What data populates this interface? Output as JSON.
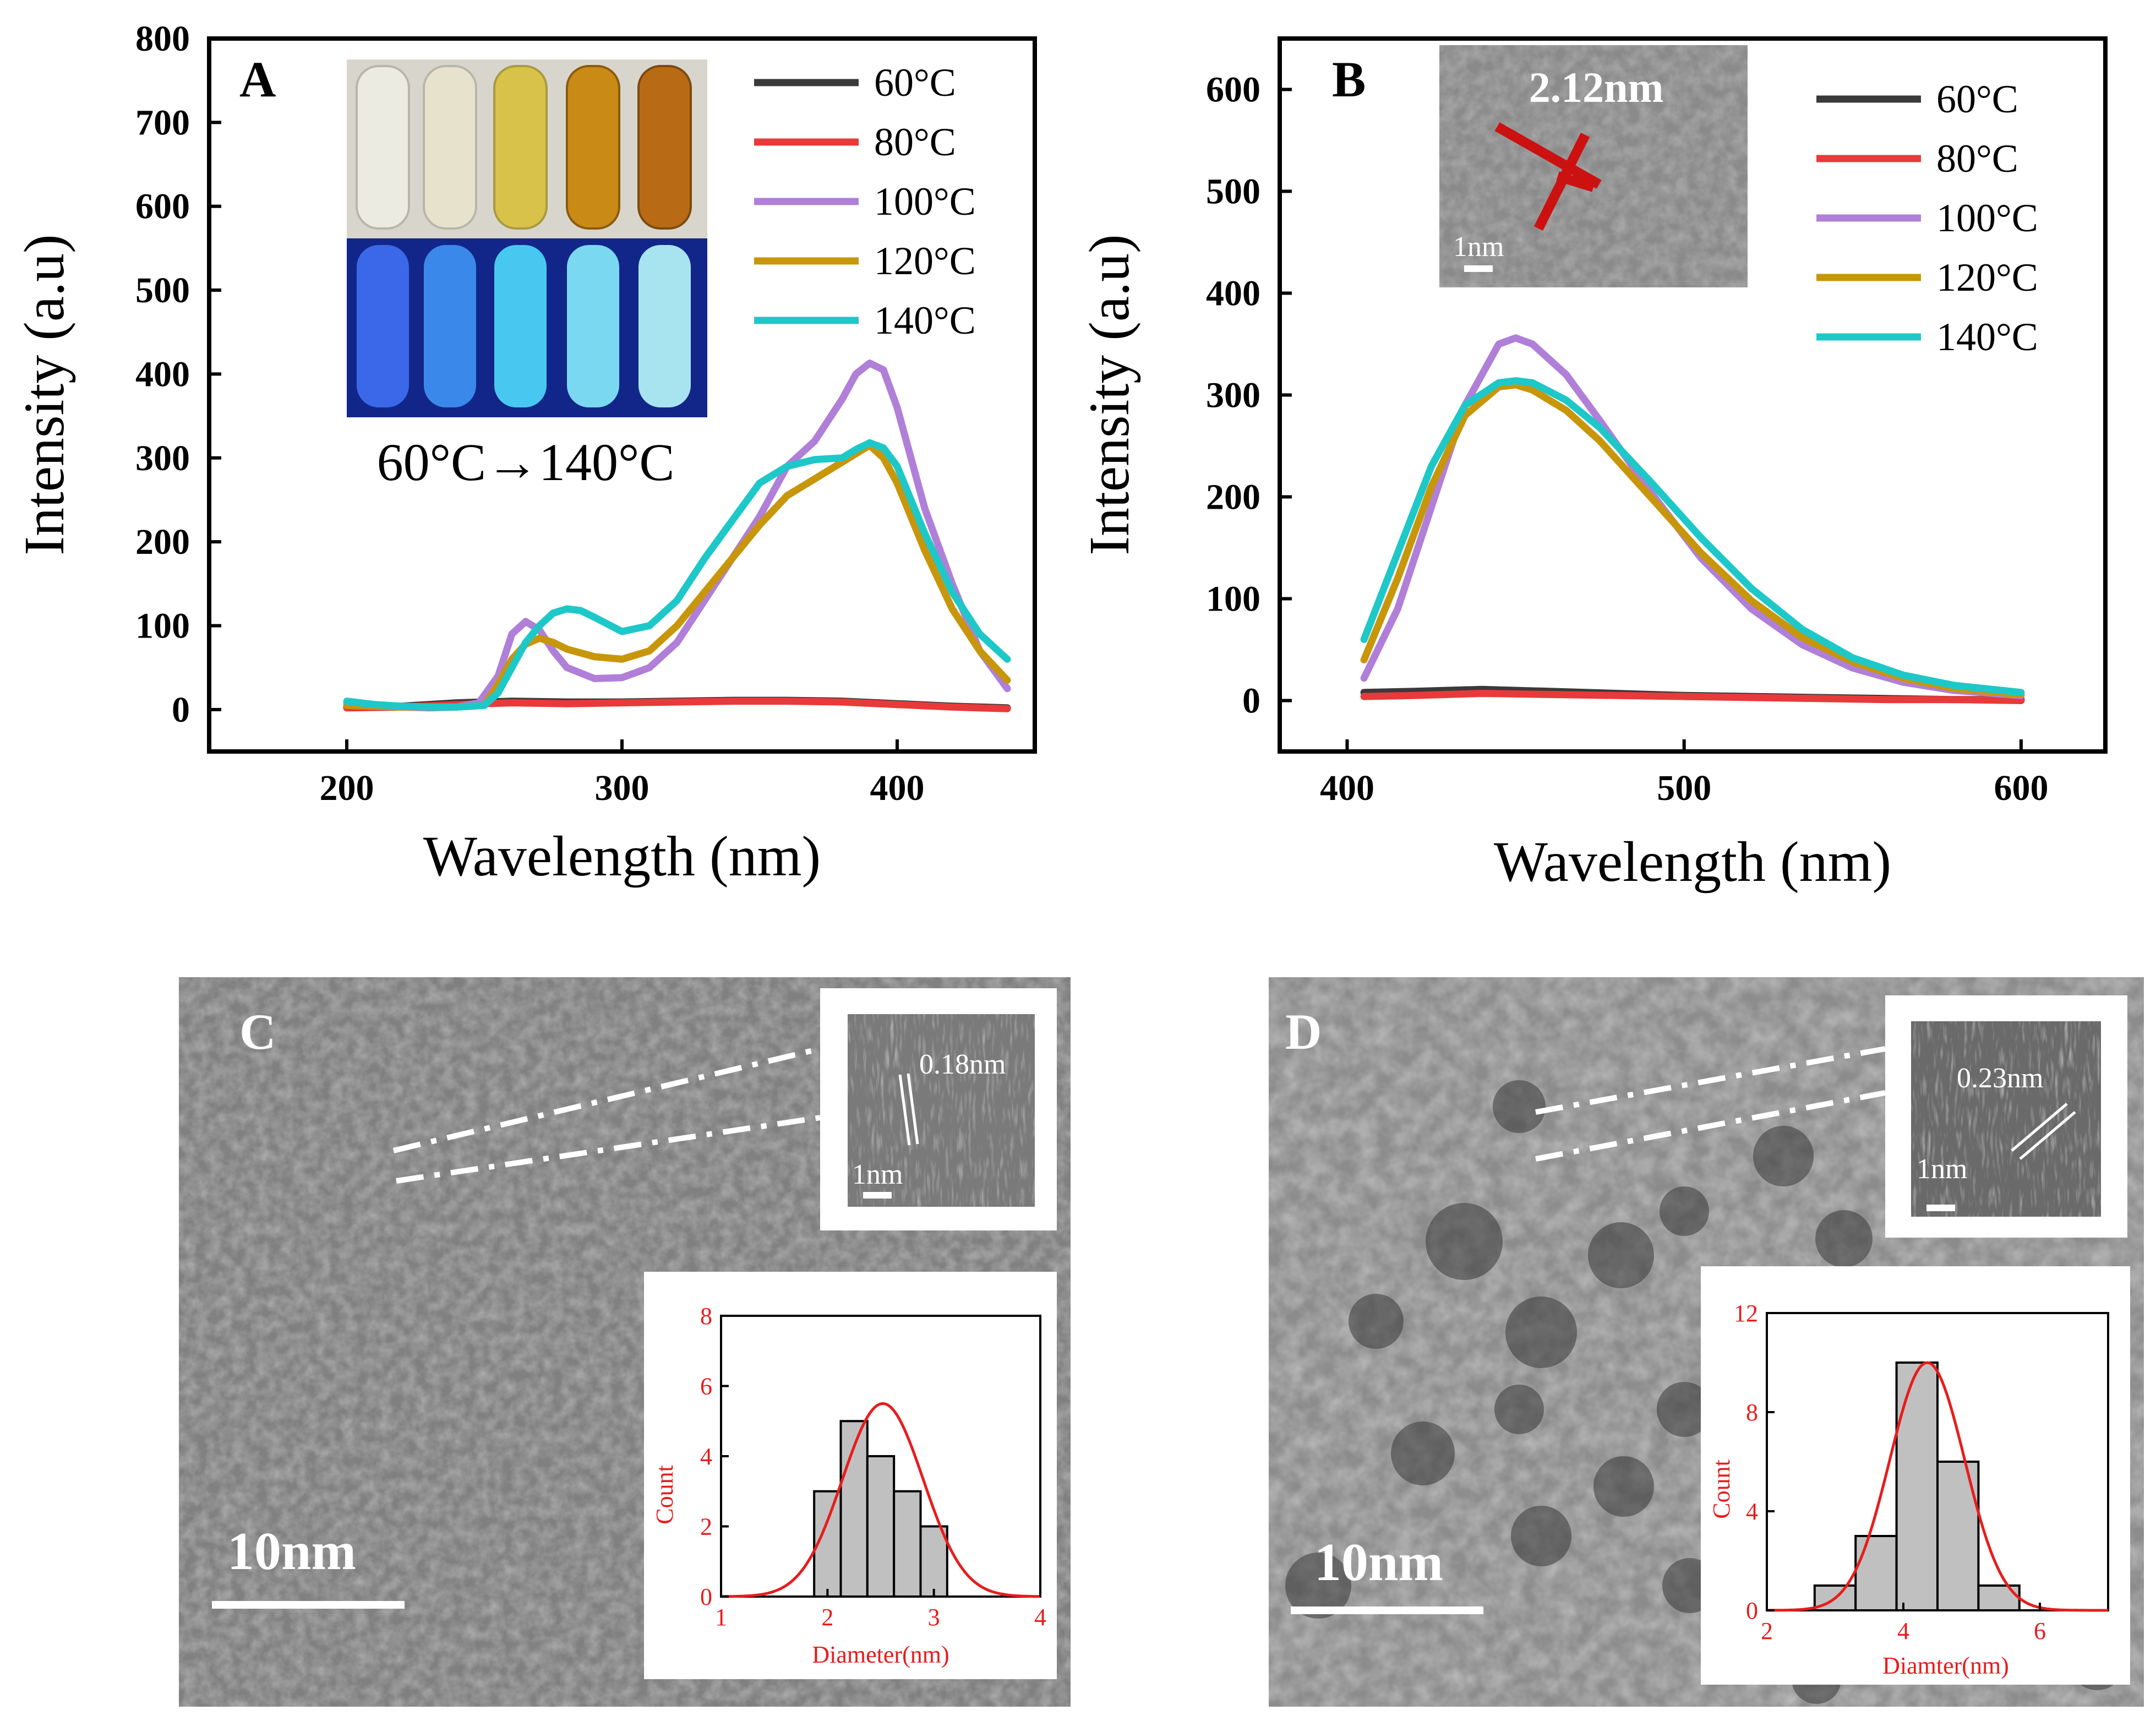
{
  "panels": {
    "A": "A",
    "B": "B",
    "C": "C",
    "D": "D"
  },
  "colors": {
    "c60": "#3a3a3a",
    "c80": "#e83a3a",
    "c100": "#b07fd8",
    "c120": "#c8960a",
    "c140": "#1ec8c8",
    "fit": "#e81c1c",
    "histbar": "#c0c0c0",
    "scalebar_red": "#cc1111"
  },
  "chart_data": [
    {
      "id": "A",
      "type": "line",
      "title": "",
      "xlabel": "Wavelength (nm)",
      "ylabel": "Intensity (a.u)",
      "xlim": [
        150,
        450
      ],
      "ylim": [
        -50,
        800
      ],
      "xticks": [
        200,
        300,
        400
      ],
      "yticks": [
        0,
        100,
        200,
        300,
        400,
        500,
        600,
        700,
        800
      ],
      "legend": "top-right",
      "inset_caption": "60°C→140°C",
      "series": [
        {
          "name": "60°C",
          "color_key": "c60",
          "x": [
            200,
            220,
            240,
            260,
            280,
            300,
            320,
            340,
            360,
            380,
            400,
            420,
            440
          ],
          "y": [
            3,
            4,
            8,
            10,
            9,
            9,
            10,
            11,
            11,
            10,
            7,
            4,
            2
          ]
        },
        {
          "name": "80°C",
          "color_key": "c80",
          "x": [
            200,
            220,
            240,
            260,
            280,
            300,
            320,
            340,
            360,
            380,
            400,
            420,
            440
          ],
          "y": [
            2,
            3,
            6,
            8,
            7,
            8,
            9,
            10,
            10,
            9,
            6,
            3,
            1
          ]
        },
        {
          "name": "100°C",
          "color_key": "c100",
          "x": [
            200,
            210,
            220,
            230,
            240,
            248,
            255,
            260,
            265,
            270,
            275,
            280,
            290,
            300,
            310,
            320,
            330,
            340,
            350,
            360,
            370,
            380,
            385,
            390,
            395,
            400,
            410,
            420,
            430,
            440
          ],
          "y": [
            8,
            5,
            3,
            2,
            3,
            8,
            40,
            90,
            105,
            95,
            70,
            50,
            37,
            38,
            50,
            80,
            130,
            180,
            230,
            290,
            320,
            370,
            400,
            413,
            405,
            360,
            240,
            150,
            70,
            25
          ]
        },
        {
          "name": "120°C",
          "color_key": "c120",
          "x": [
            200,
            210,
            220,
            230,
            240,
            250,
            255,
            260,
            265,
            270,
            275,
            280,
            290,
            300,
            310,
            320,
            330,
            340,
            350,
            360,
            370,
            380,
            385,
            390,
            395,
            400,
            410,
            420,
            430,
            440
          ],
          "y": [
            5,
            4,
            3,
            3,
            3,
            5,
            30,
            60,
            78,
            85,
            80,
            72,
            63,
            60,
            70,
            100,
            140,
            180,
            220,
            255,
            275,
            295,
            305,
            315,
            300,
            270,
            190,
            120,
            70,
            35
          ]
        },
        {
          "name": "140°C",
          "color_key": "c140",
          "x": [
            200,
            210,
            220,
            230,
            240,
            250,
            255,
            260,
            265,
            270,
            275,
            280,
            285,
            290,
            300,
            310,
            320,
            330,
            340,
            350,
            360,
            370,
            380,
            385,
            390,
            395,
            400,
            410,
            420,
            430,
            440
          ],
          "y": [
            10,
            6,
            4,
            3,
            3,
            5,
            20,
            50,
            80,
            100,
            115,
            120,
            118,
            110,
            93,
            100,
            130,
            180,
            225,
            270,
            290,
            298,
            300,
            310,
            318,
            312,
            290,
            210,
            140,
            90,
            60
          ]
        }
      ]
    },
    {
      "id": "B",
      "type": "line",
      "title": "",
      "xlabel": "Wavelength (nm)",
      "ylabel": "Intensity (a.u)",
      "xlim": [
        380,
        625
      ],
      "ylim": [
        -50,
        650
      ],
      "xticks": [
        400,
        500,
        600
      ],
      "yticks": [
        0,
        100,
        200,
        300,
        400,
        500,
        600
      ],
      "legend": "top-right",
      "inset_scale_label": "1nm",
      "inset_measure_label": "2.12nm",
      "series": [
        {
          "name": "60°C",
          "color_key": "c60",
          "x": [
            405,
            420,
            440,
            460,
            480,
            500,
            520,
            540,
            560,
            580,
            600
          ],
          "y": [
            8,
            9,
            11,
            9,
            7,
            5,
            4,
            3,
            2,
            1,
            1
          ]
        },
        {
          "name": "80°C",
          "color_key": "c80",
          "x": [
            405,
            420,
            440,
            460,
            480,
            500,
            520,
            540,
            560,
            580,
            600
          ],
          "y": [
            4,
            5,
            7,
            6,
            5,
            4,
            3,
            2,
            1,
            1,
            0
          ]
        },
        {
          "name": "100°C",
          "color_key": "c100",
          "x": [
            405,
            415,
            425,
            435,
            445,
            450,
            455,
            465,
            475,
            490,
            505,
            520,
            535,
            550,
            565,
            580,
            600
          ],
          "y": [
            22,
            90,
            190,
            290,
            350,
            356,
            350,
            320,
            275,
            205,
            140,
            90,
            55,
            32,
            18,
            10,
            5
          ]
        },
        {
          "name": "120°C",
          "color_key": "c120",
          "x": [
            405,
            415,
            425,
            435,
            445,
            450,
            455,
            465,
            475,
            490,
            505,
            520,
            535,
            550,
            565,
            580,
            600
          ],
          "y": [
            40,
            120,
            210,
            280,
            308,
            310,
            305,
            285,
            255,
            200,
            145,
            98,
            62,
            38,
            22,
            12,
            6
          ]
        },
        {
          "name": "140°C",
          "color_key": "c140",
          "x": [
            405,
            415,
            425,
            435,
            445,
            450,
            455,
            465,
            475,
            490,
            505,
            520,
            535,
            550,
            565,
            580,
            600
          ],
          "y": [
            60,
            145,
            230,
            290,
            312,
            314,
            312,
            295,
            268,
            215,
            160,
            110,
            70,
            42,
            25,
            15,
            8
          ]
        }
      ]
    },
    {
      "id": "C-hist",
      "type": "bar",
      "xlabel": "Diameter(nm)",
      "ylabel": "Count",
      "xlim": [
        1,
        4
      ],
      "ylim": [
        0,
        8
      ],
      "xticks": [
        1,
        2,
        3,
        4
      ],
      "yticks": [
        0,
        2,
        4,
        6,
        8
      ],
      "bin_centers": [
        2.0,
        2.25,
        2.5,
        2.75,
        3.0,
        3.25
      ],
      "bin_width": 0.25,
      "values": [
        3,
        5,
        4,
        3,
        2,
        0
      ],
      "fit": {
        "type": "gaussian",
        "mean": 2.52,
        "sigma": 0.38,
        "peak": 5.5
      }
    },
    {
      "id": "D-hist",
      "type": "bar",
      "xlabel": "Diamter(nm)",
      "ylabel": "Count",
      "xlim": [
        2,
        7
      ],
      "ylim": [
        0,
        12
      ],
      "xticks": [
        2,
        4,
        6
      ],
      "yticks": [
        0,
        4,
        8,
        12
      ],
      "bin_centers": [
        3.0,
        3.6,
        4.2,
        4.8,
        5.4
      ],
      "bin_width": 0.6,
      "values": [
        1,
        3,
        10,
        6,
        1
      ],
      "fit": {
        "type": "gaussian",
        "mean": 4.35,
        "sigma": 0.55,
        "peak": 10
      }
    }
  ],
  "tem": {
    "C": {
      "scale_label": "10nm",
      "inset_scale_label": "1nm",
      "lattice_label": "0.18nm"
    },
    "D": {
      "scale_label": "10nm",
      "inset_scale_label": "1nm",
      "lattice_label": "0.23nm"
    }
  }
}
